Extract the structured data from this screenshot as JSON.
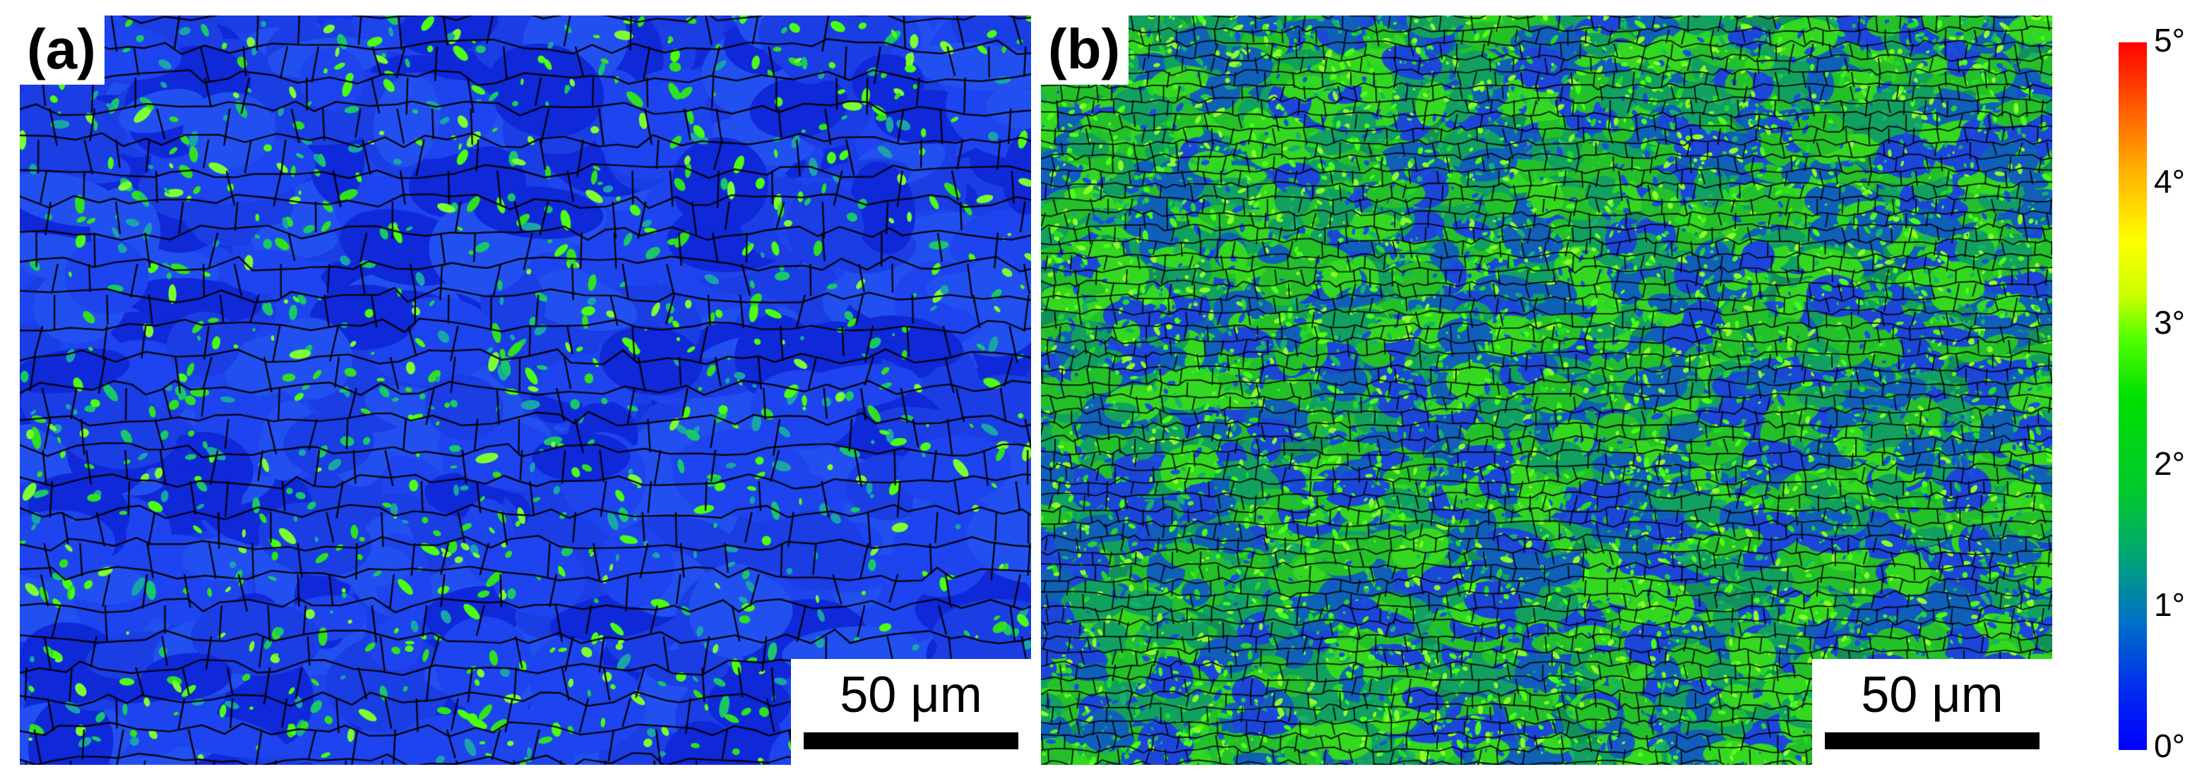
{
  "panels": [
    {
      "label": "(a)",
      "scale_bar": "50 μm"
    },
    {
      "label": "(b)",
      "scale_bar": "50 μm"
    }
  ],
  "colorbar": {
    "ticks": [
      "5°",
      "4°",
      "3°",
      "2°",
      "1°",
      "0°"
    ],
    "colors": {
      "min": "#0000ff",
      "mid": "#00e000",
      "high": "#ffff00",
      "max": "#ff0000"
    }
  }
}
